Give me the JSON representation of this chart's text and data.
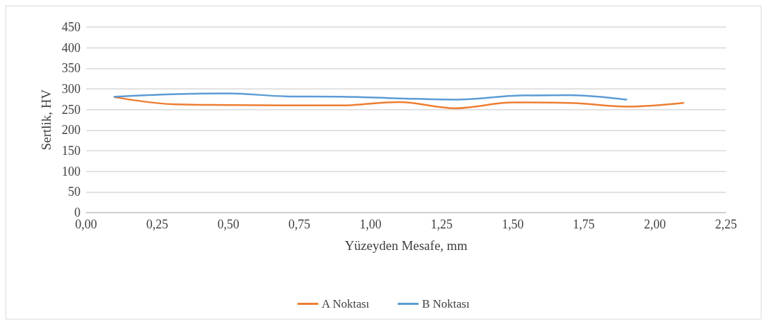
{
  "chart_data": {
    "type": "line",
    "xlabel": "Yüzeyden Mesafe, mm",
    "ylabel": "Sertlik, HV",
    "series": [
      {
        "name": "A Noktası",
        "color": "#ed7d31",
        "x": [
          0.1,
          0.3,
          0.5,
          0.7,
          0.9,
          1.1,
          1.3,
          1.5,
          1.7,
          1.9,
          2.1
        ],
        "values": [
          280,
          263,
          261,
          260,
          260,
          268,
          253,
          267,
          266,
          257,
          266
        ]
      },
      {
        "name": "B Noktası",
        "color": "#5b9bd5",
        "x": [
          0.1,
          0.3,
          0.5,
          0.7,
          0.9,
          1.1,
          1.3,
          1.5,
          1.7,
          1.9
        ],
        "values": [
          281,
          287,
          289,
          282,
          281,
          277,
          274,
          283,
          285,
          274
        ]
      }
    ],
    "xlim": [
      0,
      2.25
    ],
    "xticks": [
      {
        "value": 0,
        "label": "0,00"
      },
      {
        "value": 0.25,
        "label": "0,25"
      },
      {
        "value": 0.5,
        "label": "0,50"
      },
      {
        "value": 0.75,
        "label": "0,75"
      },
      {
        "value": 1,
        "label": "1,00"
      },
      {
        "value": 1.25,
        "label": "1,25"
      },
      {
        "value": 1.5,
        "label": "1,50"
      },
      {
        "value": 1.75,
        "label": "1,75"
      },
      {
        "value": 2,
        "label": "2,00"
      },
      {
        "value": 2.25,
        "label": "2,25"
      }
    ],
    "ylim": [
      0,
      450
    ],
    "yticks": [
      0,
      50,
      100,
      150,
      200,
      250,
      300,
      350,
      400,
      450
    ],
    "grid": "y",
    "legend": "bottom",
    "marker": "none",
    "line_style": "solid"
  }
}
